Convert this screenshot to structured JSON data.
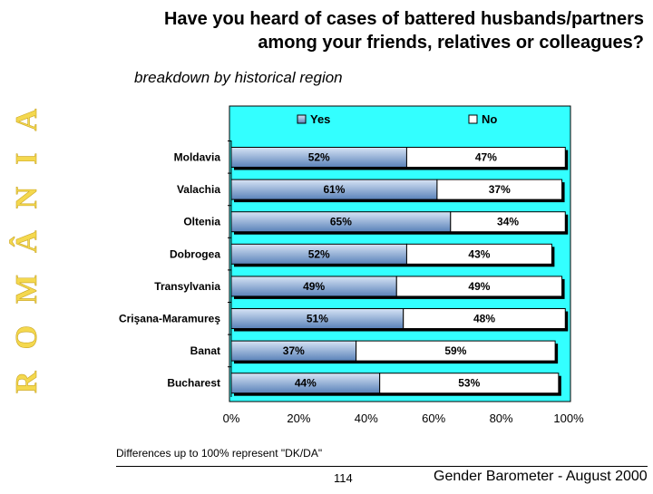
{
  "side_word": "ROMÂNIA",
  "title_line1": "Have you heard of cases of battered husbands/partners",
  "title_line2": "among your friends, relatives or colleagues?",
  "subtitle": "breakdown by historical region",
  "note": "Differences up to 100% represent \"DK/DA\"",
  "page_number": "114",
  "footer_source": "Gender Barometer - August 2000",
  "colors": {
    "plot_background": "#33ffff",
    "yes_bar_light": "#d7e4f5",
    "yes_bar_dark": "#5a82b9",
    "no_bar": "#ffffff",
    "bar_edge": "#000000",
    "side_word": "#f4d84e"
  },
  "chart_data": {
    "type": "bar",
    "orientation": "horizontal",
    "stacked": true,
    "categories": [
      "Moldavia",
      "Valachia",
      "Oltenia",
      "Dobrogea",
      "Transylvania",
      "Crişana-Maramureş",
      "Banat",
      "Bucharest"
    ],
    "series": [
      {
        "name": "Yes",
        "values": [
          52,
          61,
          65,
          52,
          49,
          51,
          37,
          44
        ]
      },
      {
        "name": "No",
        "values": [
          47,
          37,
          34,
          43,
          49,
          48,
          59,
          53
        ]
      }
    ],
    "xlim": [
      0,
      100
    ],
    "xticks": [
      "0%",
      "20%",
      "40%",
      "60%",
      "80%",
      "100%"
    ],
    "legend_position": "top",
    "grid": false,
    "value_label_suffix": "%"
  }
}
